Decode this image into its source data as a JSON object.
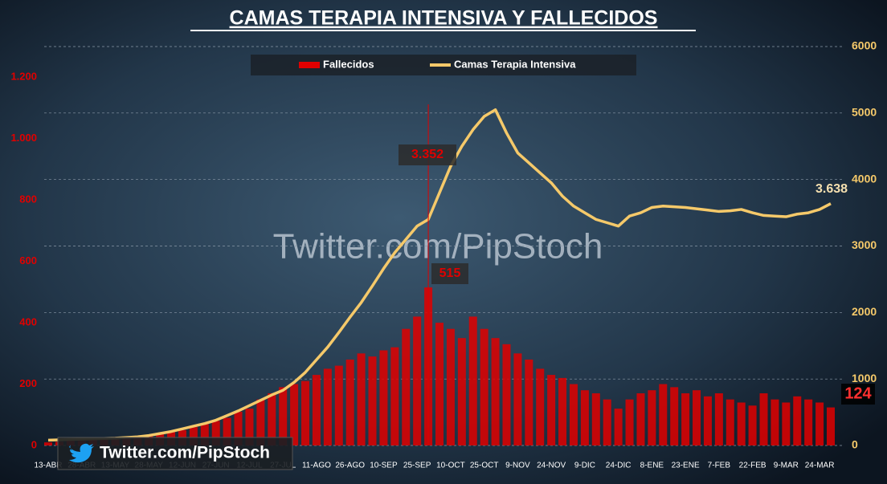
{
  "chart_data": {
    "type": "bar-line",
    "title": "CAMAS TERAPIA INTENSIVA Y FALLECIDOS",
    "watermark": "Twitter.com/PipStoch",
    "footer_handle": "Twitter.com/PipStoch",
    "categories": [
      "13-ABR",
      null,
      null,
      "28-ABR",
      null,
      null,
      "13-MAY",
      null,
      null,
      "28-MAY",
      null,
      null,
      "12-JUN",
      null,
      null,
      "27-JUN",
      null,
      null,
      "12-JUL",
      null,
      null,
      "27-JUL",
      null,
      null,
      "11-AGO",
      null,
      null,
      "26-AGO",
      null,
      null,
      "10-SEP",
      null,
      null,
      "25-SEP",
      null,
      null,
      "10-OCT",
      null,
      null,
      "25-OCT",
      null,
      null,
      "9-NOV",
      null,
      null,
      "24-NOV",
      null,
      null,
      "9-DIC",
      null,
      null,
      "24-DIC",
      null,
      null,
      "8-ENE",
      null,
      null,
      "23-ENE",
      null,
      null,
      "7-FEB",
      null,
      null,
      "22-FEB",
      null,
      null,
      "9-MAR",
      null,
      null,
      "24-MAR",
      null
    ],
    "series": [
      {
        "name": "Fallecidos",
        "type": "bar",
        "axis": "y",
        "color": "#e00000",
        "values": [
          10,
          12,
          15,
          15,
          18,
          20,
          22,
          25,
          28,
          35,
          40,
          45,
          50,
          60,
          70,
          80,
          90,
          110,
          120,
          150,
          170,
          190,
          200,
          210,
          230,
          250,
          260,
          280,
          300,
          290,
          310,
          320,
          380,
          420,
          515,
          400,
          380,
          350,
          420,
          380,
          350,
          330,
          300,
          280,
          250,
          230,
          220,
          200,
          180,
          170,
          150,
          120,
          150,
          170,
          180,
          200,
          190,
          170,
          180,
          160,
          170,
          150,
          140,
          130,
          170,
          150,
          140,
          160,
          150,
          140,
          124
        ]
      },
      {
        "name": "Camas Terapia Intensiva",
        "type": "line",
        "axis": "y2",
        "color": "#f5c96a",
        "values": [
          80,
          85,
          90,
          95,
          100,
          105,
          110,
          120,
          130,
          150,
          180,
          210,
          250,
          290,
          330,
          380,
          450,
          520,
          600,
          680,
          760,
          830,
          950,
          1100,
          1290,
          1480,
          1700,
          1930,
          2150,
          2400,
          2660,
          2900,
          3100,
          3300,
          3400,
          3800,
          4200,
          4500,
          4750,
          4950,
          5050,
          4700,
          4400,
          4250,
          4100,
          3950,
          3750,
          3600,
          3500,
          3400,
          3350,
          3300,
          3450,
          3500,
          3580,
          3600,
          3590,
          3580,
          3560,
          3540,
          3520,
          3530,
          3550,
          3500,
          3460,
          3450,
          3440,
          3480,
          3500,
          3550,
          3638
        ]
      }
    ],
    "annotations": [
      "3.352",
      "515",
      "3.638",
      "124"
    ],
    "ylim": [
      0,
      1300
    ],
    "yticks": [
      {
        "value": 0,
        "label": "0"
      },
      {
        "value": 200,
        "label": "200"
      },
      {
        "value": 400,
        "label": "400"
      },
      {
        "value": 600,
        "label": "600"
      },
      {
        "value": 800,
        "label": "800"
      },
      {
        "value": 1000,
        "label": "1.000"
      },
      {
        "value": 1200,
        "label": "1.200"
      }
    ],
    "y2lim": [
      0,
      6000
    ],
    "y2ticks": [
      0,
      1000,
      2000,
      3000,
      4000,
      5000,
      6000
    ],
    "grid": true,
    "legend": "top"
  }
}
